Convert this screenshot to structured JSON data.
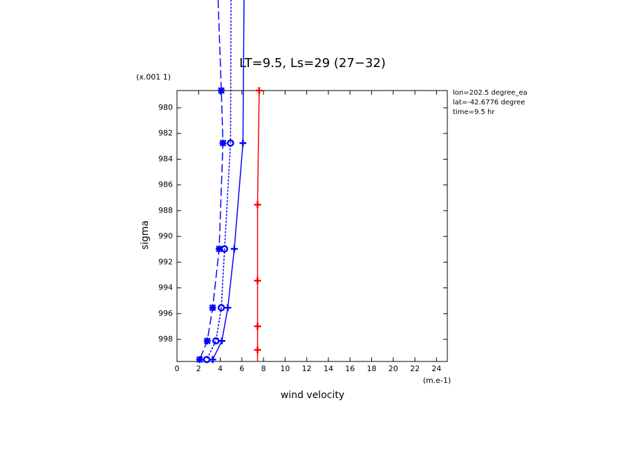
{
  "chart_data": {
    "type": "line",
    "title": "LT=9.5, Ls=29 (27−32)",
    "x_label": "wind velocity",
    "y_label": "sigma",
    "x_scale_note": "(m.e-1)",
    "y_scale_note": "(x.001 1)",
    "annotations": [
      "lon=202.5 degree_ea",
      "lat=-42.6776 degree",
      "time=9.5 hr"
    ],
    "xlim": [
      0,
      25
    ],
    "xticks": [
      0,
      2,
      4,
      6,
      8,
      10,
      12,
      14,
      16,
      18,
      20,
      22,
      24
    ],
    "ylim": [
      999.72,
      978.66
    ],
    "yticks": [
      980,
      982,
      984,
      986,
      988,
      990,
      992,
      994,
      996,
      998
    ],
    "series": [
      {
        "color": "#0000ff",
        "dash": "solid",
        "marker": "plus",
        "sigma": [
          971.6,
          982.74,
          990.97,
          995.54,
          998.12,
          999.57
        ],
        "values": [
          6.2,
          6.1,
          5.3,
          4.7,
          4.15,
          3.3
        ]
      },
      {
        "color": "#0000ff",
        "dash": "dotted",
        "marker": "circle",
        "sigma": [
          971.6,
          982.74,
          990.97,
          995.54,
          998.12,
          999.57
        ],
        "values": [
          5.0,
          4.95,
          4.4,
          4.1,
          3.6,
          2.75
        ]
      },
      {
        "color": "#0000ff",
        "dash": "dashed",
        "marker": "asterisk",
        "sigma": [
          971.6,
          978.66,
          982.74,
          990.97,
          995.54,
          998.12,
          999.57
        ],
        "values": [
          3.8,
          4.1,
          4.25,
          3.9,
          3.3,
          2.8,
          2.1
        ]
      },
      {
        "color": "#ff0000",
        "dash": "solid",
        "marker": "plus",
        "sigma": [
          978.66,
          987.53,
          993.44,
          996.99,
          998.82,
          999.73
        ],
        "values": [
          7.6,
          7.45,
          7.45,
          7.45,
          7.45,
          7.45
        ]
      }
    ]
  }
}
